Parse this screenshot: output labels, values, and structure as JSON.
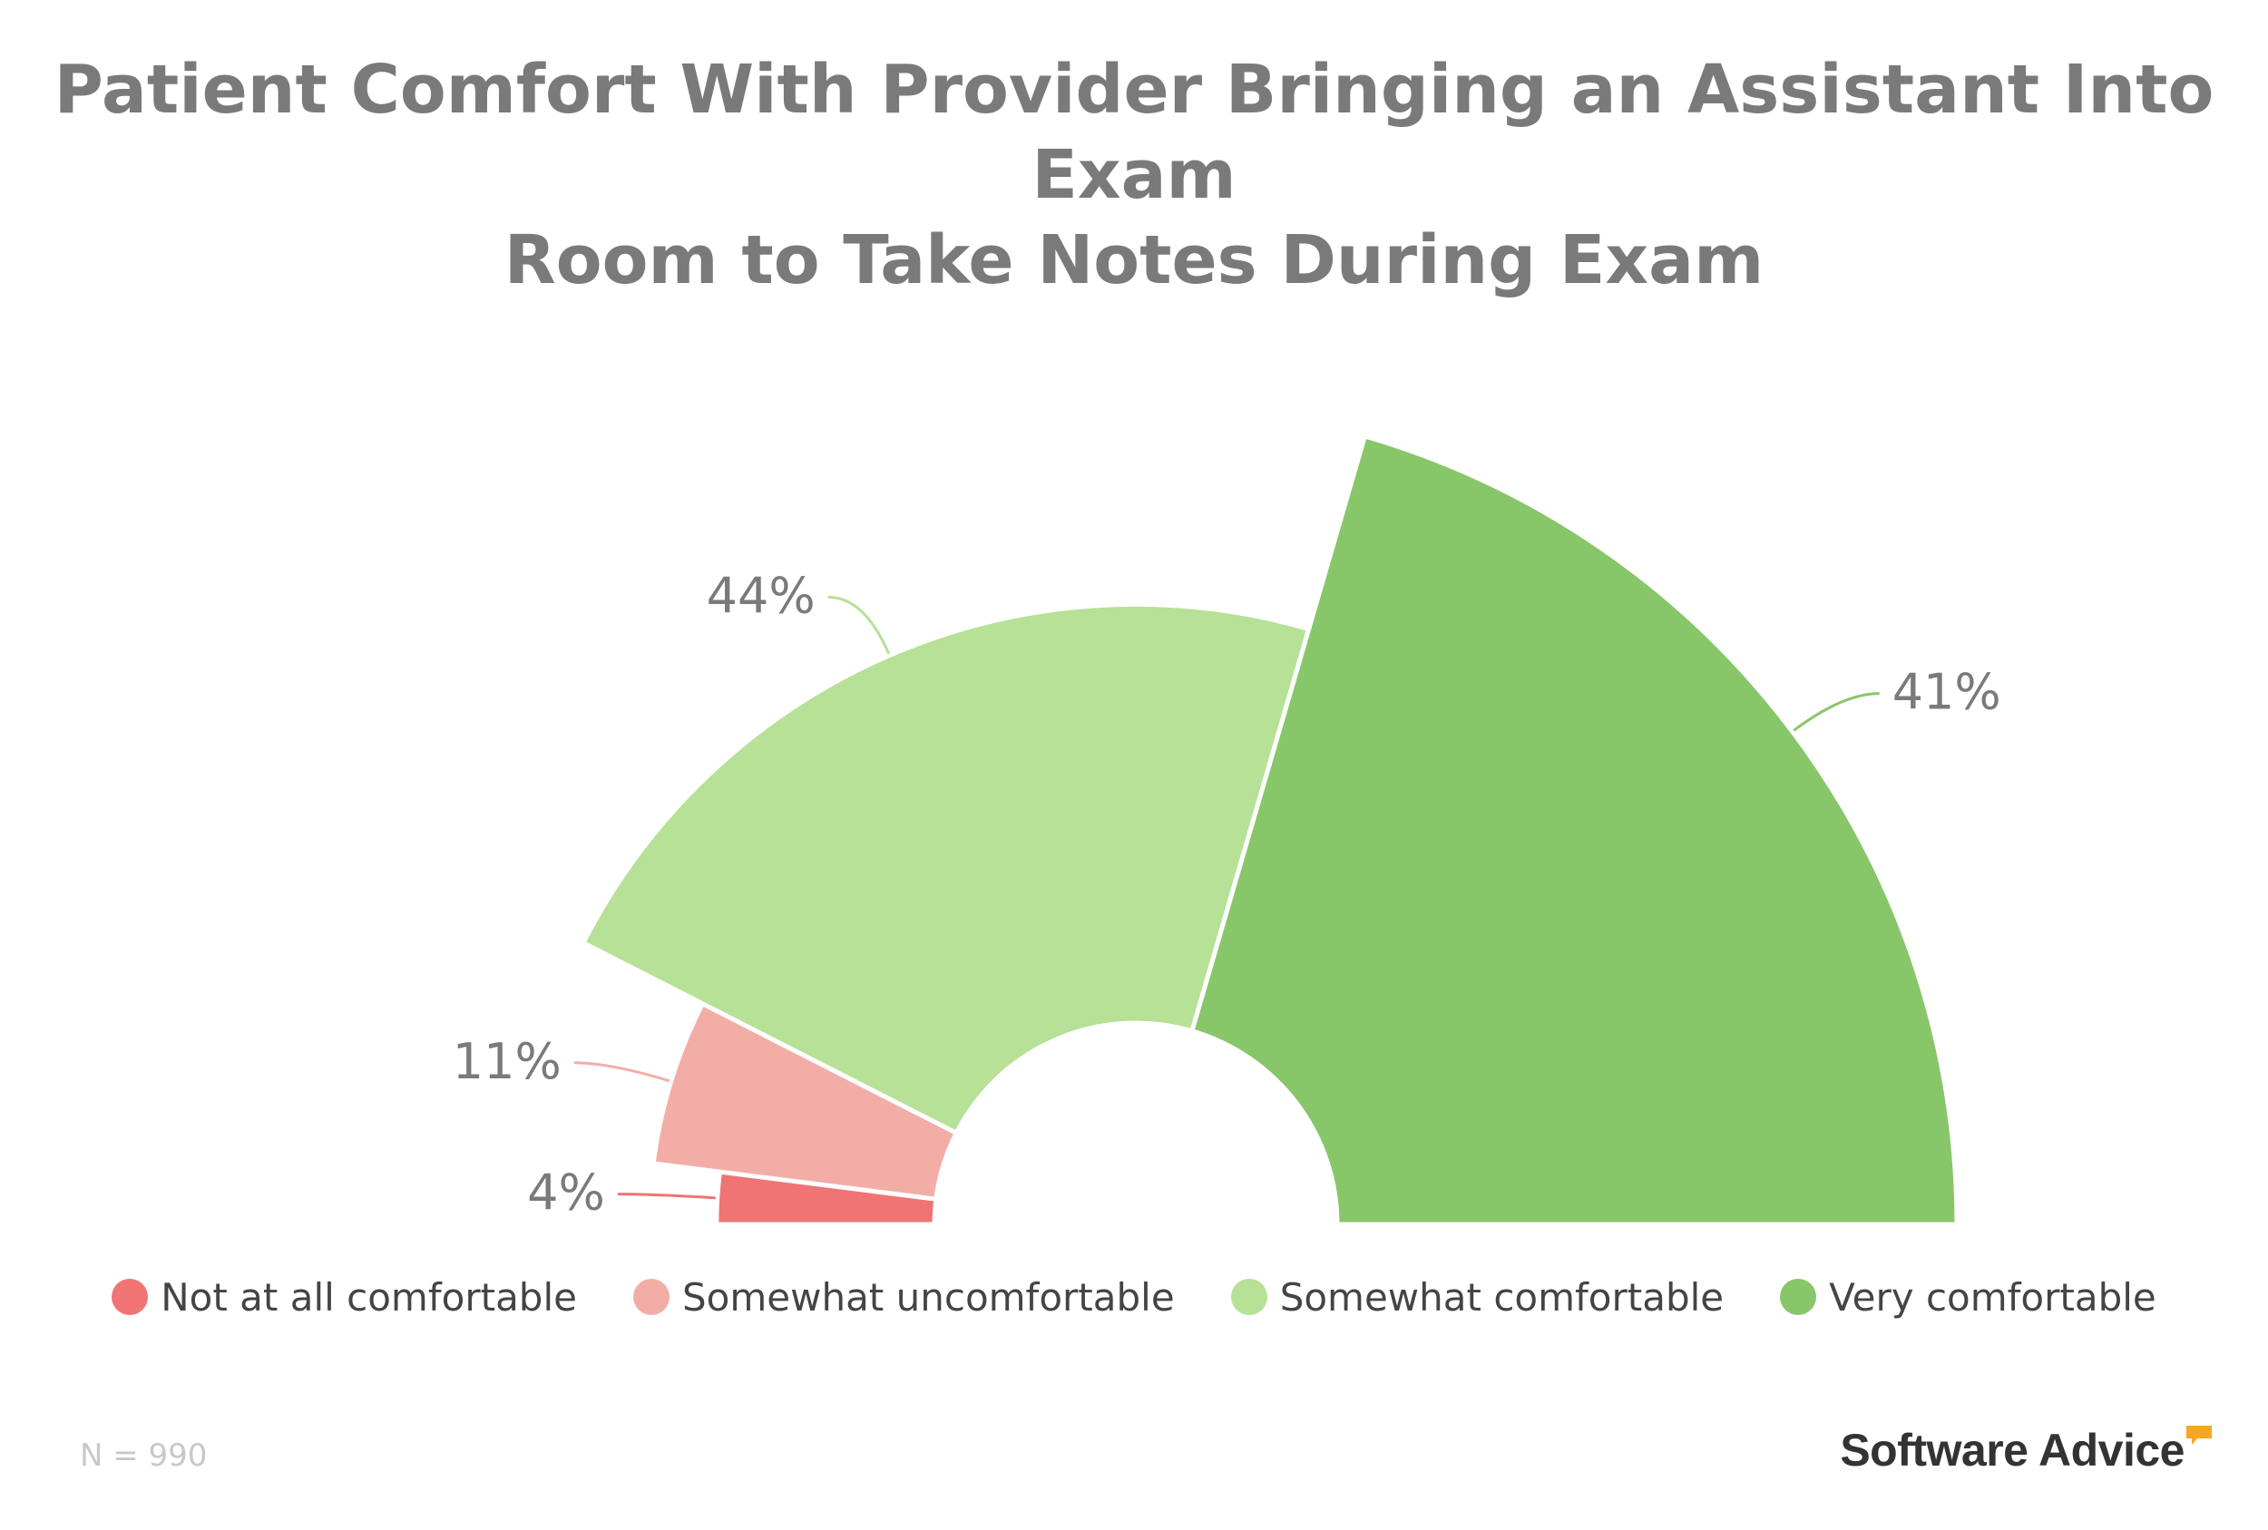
{
  "chart_data": {
    "type": "pie",
    "variant": "semi-donut",
    "title": "Patient Comfort With Provider Bringing an Assistant Into Exam Room to Take Notes During Exam",
    "title_lines": [
      "Patient Comfort With Provider Bringing an Assistant Into Exam",
      "Room to Take Notes During Exam"
    ],
    "categories": [
      "Not at all comfortable",
      "Somewhat uncomfortable",
      "Somewhat comfortable",
      "Very comfortable"
    ],
    "values": [
      4,
      11,
      44,
      41
    ],
    "labels": [
      "4%",
      "11%",
      "44%",
      "41%"
    ],
    "colors": [
      "#ef7473",
      "#f3ada7",
      "#b6e196",
      "#88c66a"
    ],
    "radii": [
      10,
      25,
      55,
      100
    ],
    "legend_position": "bottom"
  },
  "footer": {
    "note": "N = 990",
    "brand": "Software Advice"
  },
  "colors": {
    "title": "#7a7a7a",
    "label": "#7a7a7a",
    "brand_accent": "#f5a623"
  }
}
